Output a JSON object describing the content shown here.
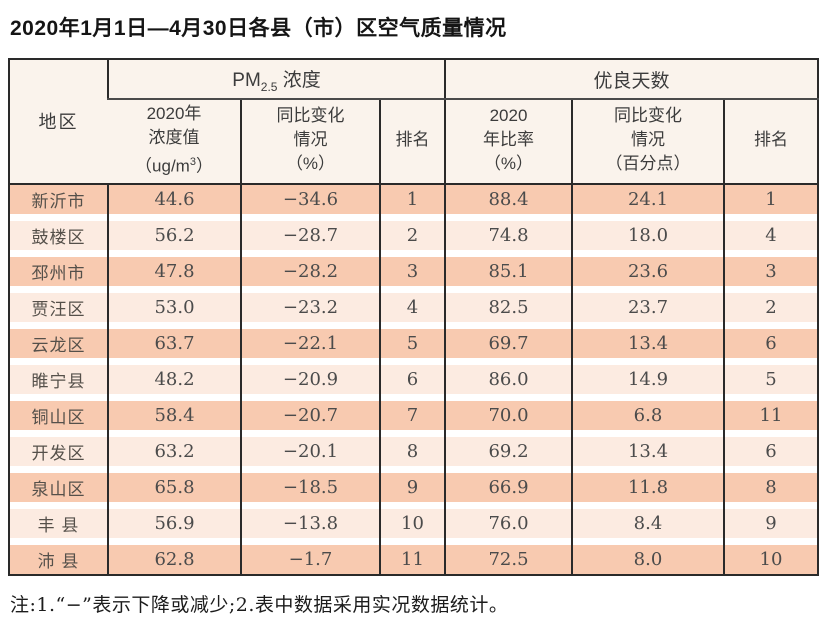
{
  "title": "2020年1月1日—4月30日各县（市）区空气质量情况",
  "note": "注:1.“−”表示下降或减少;2.表中数据采用实况数据统计。",
  "colors": {
    "border": "#2a2a2a",
    "header_bg": "#faf3ec",
    "row_odd": "#f8cab0",
    "row_even": "#fcebe1"
  },
  "chart_data": {
    "type": "table",
    "title": "2020年1月1日—4月30日各县（市）区空气质量情况",
    "column_groups": {
      "pm": {
        "prefix": "PM",
        "sub": "2.5",
        "suffix": " 浓度"
      },
      "good_days": "优良天数"
    },
    "headers": {
      "region": "地区",
      "pm_value": {
        "line1": "2020年",
        "line2": "浓度值",
        "unit_pre": "（ug/m",
        "unit_sup": "3",
        "unit_post": "）"
      },
      "pm_change": {
        "line1": "同比变化",
        "line2": "情况",
        "line3": "（%）"
      },
      "pm_rank": "排名",
      "good_rate": {
        "line1": "2020",
        "line2": "年比率",
        "line3": "（%）"
      },
      "good_change": {
        "line1": "同比变化",
        "line2": "情况",
        "line3": "（百分点）"
      },
      "good_rank": "排名"
    },
    "rows": [
      {
        "region": "新沂市",
        "pm_value": "44.6",
        "pm_change": "−34.6",
        "pm_rank": "1",
        "good_rate": "88.4",
        "good_change": "24.1",
        "good_rank": "1"
      },
      {
        "region": "鼓楼区",
        "pm_value": "56.2",
        "pm_change": "−28.7",
        "pm_rank": "2",
        "good_rate": "74.8",
        "good_change": "18.0",
        "good_rank": "4"
      },
      {
        "region": "邳州市",
        "pm_value": "47.8",
        "pm_change": "−28.2",
        "pm_rank": "3",
        "good_rate": "85.1",
        "good_change": "23.6",
        "good_rank": "3"
      },
      {
        "region": "贾汪区",
        "pm_value": "53.0",
        "pm_change": "−23.2",
        "pm_rank": "4",
        "good_rate": "82.5",
        "good_change": "23.7",
        "good_rank": "2"
      },
      {
        "region": "云龙区",
        "pm_value": "63.7",
        "pm_change": "−22.1",
        "pm_rank": "5",
        "good_rate": "69.7",
        "good_change": "13.4",
        "good_rank": "6"
      },
      {
        "region": "睢宁县",
        "pm_value": "48.2",
        "pm_change": "−20.9",
        "pm_rank": "6",
        "good_rate": "86.0",
        "good_change": "14.9",
        "good_rank": "5"
      },
      {
        "region": "铜山区",
        "pm_value": "58.4",
        "pm_change": "−20.7",
        "pm_rank": "7",
        "good_rate": "70.0",
        "good_change": "6.8",
        "good_rank": "11"
      },
      {
        "region": "开发区",
        "pm_value": "63.2",
        "pm_change": "−20.1",
        "pm_rank": "8",
        "good_rate": "69.2",
        "good_change": "13.4",
        "good_rank": "6"
      },
      {
        "region": "泉山区",
        "pm_value": "65.8",
        "pm_change": "−18.5",
        "pm_rank": "9",
        "good_rate": "66.9",
        "good_change": "11.8",
        "good_rank": "8"
      },
      {
        "region": "丰 县",
        "pm_value": "56.9",
        "pm_change": "−13.8",
        "pm_rank": "10",
        "good_rate": "76.0",
        "good_change": "8.4",
        "good_rank": "9"
      },
      {
        "region": "沛 县",
        "pm_value": "62.8",
        "pm_change": "−1.7",
        "pm_rank": "11",
        "good_rate": "72.5",
        "good_change": "8.0",
        "good_rank": "10"
      }
    ]
  }
}
